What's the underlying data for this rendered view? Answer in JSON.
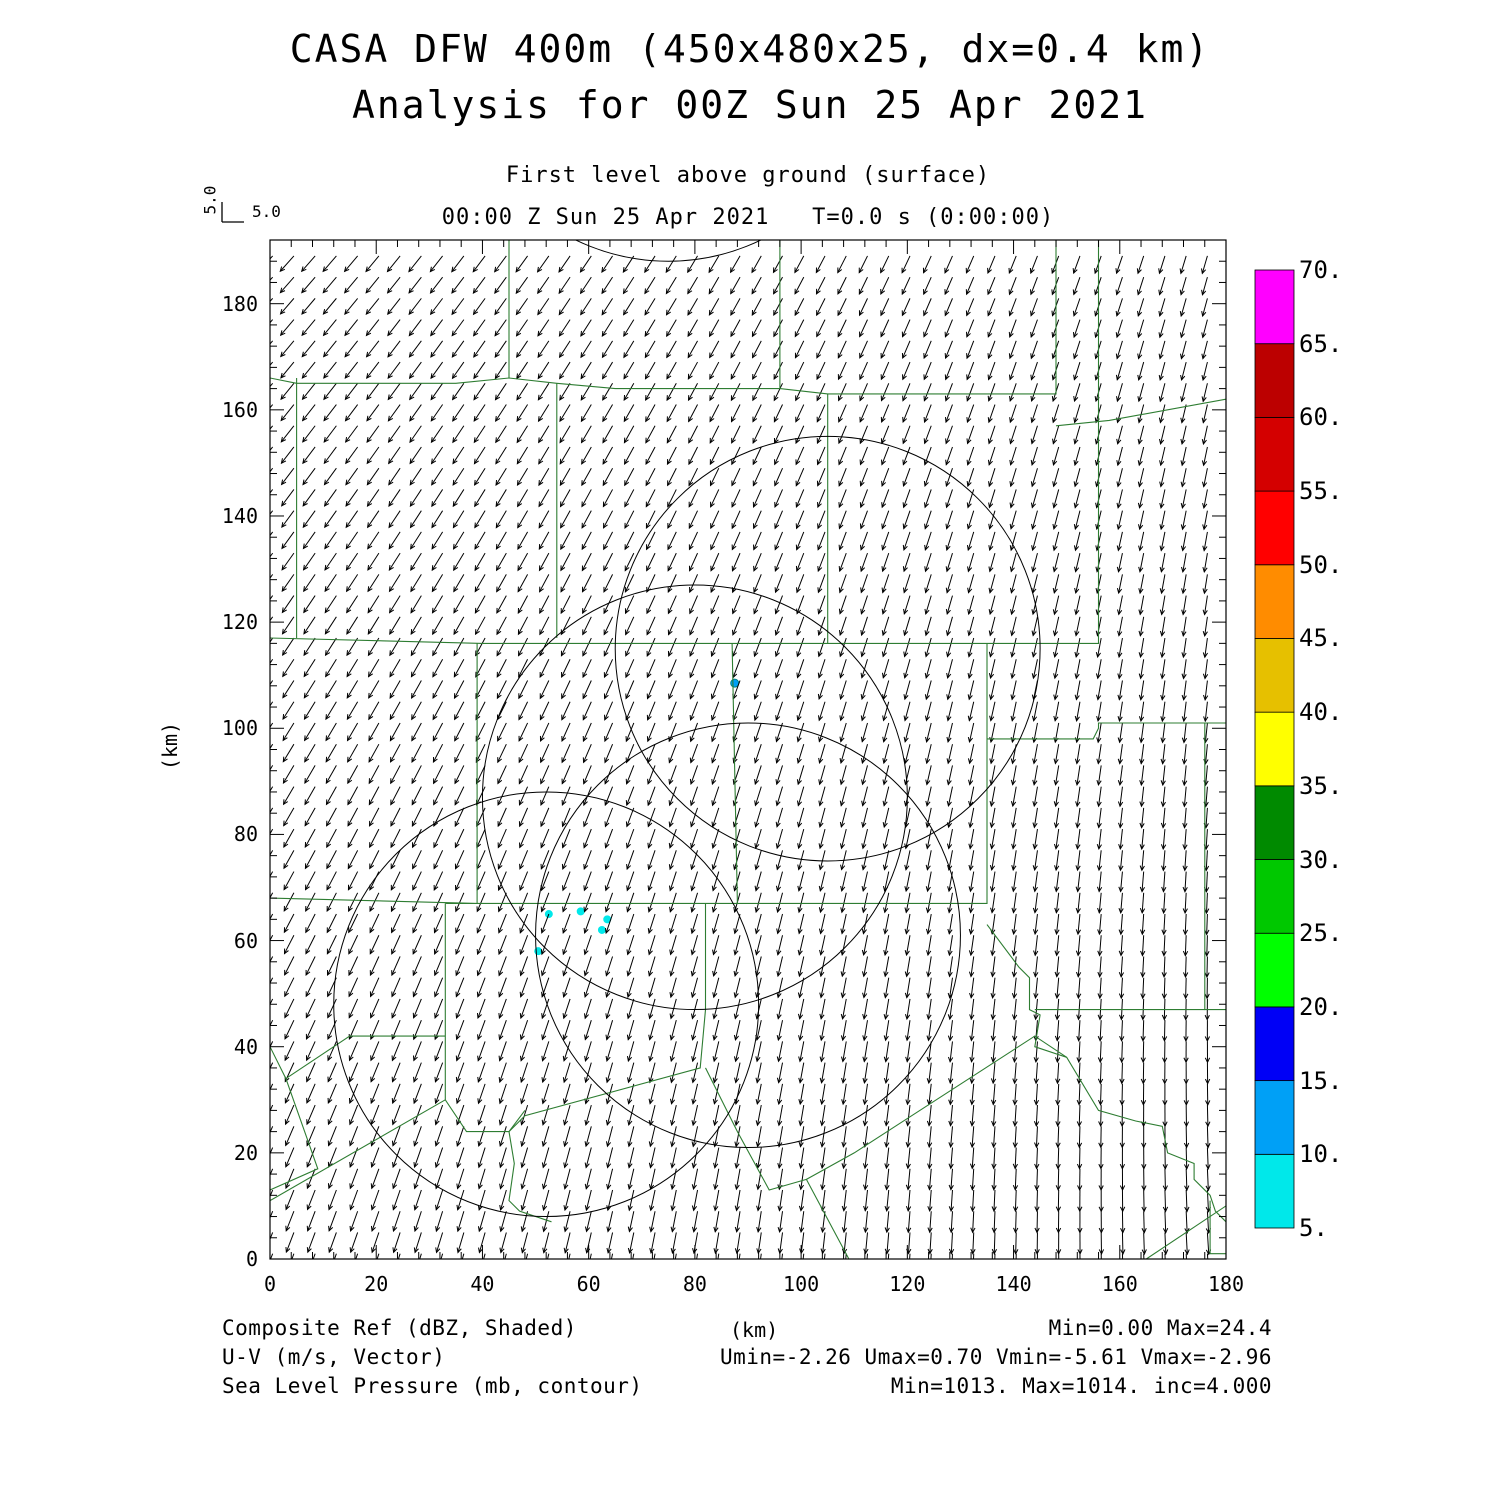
{
  "header": {
    "title_line1": "CASA DFW 400m (450x480x25, dx=0.4 km)",
    "title_line2": "Analysis for 00Z Sun 25 Apr 2021",
    "level": "First level above ground (surface)",
    "time_line": "00:00 Z Sun 25 Apr 2021   T=0.0 s (0:00:00)",
    "ref_vector_x": "5.0",
    "ref_vector_y": "5.0"
  },
  "axes": {
    "ylabel": "(km)",
    "xlabel": "(km)",
    "x_ticks": [
      "0",
      "20",
      "40",
      "60",
      "80",
      "100",
      "120",
      "140",
      "160",
      "180"
    ],
    "y_ticks": [
      "0",
      "20",
      "40",
      "60",
      "80",
      "100",
      "120",
      "140",
      "160",
      "180"
    ]
  },
  "colorbar": {
    "labels": [
      "5.",
      "10.",
      "15.",
      "20.",
      "25.",
      "30.",
      "35.",
      "40.",
      "45.",
      "50.",
      "55.",
      "60.",
      "65.",
      "70."
    ],
    "colors": [
      "#00e8ea",
      "#00a0f6",
      "#0000f6",
      "#00ff00",
      "#00c800",
      "#008a00",
      "#ffff00",
      "#e6c000",
      "#ff8c00",
      "#ff0000",
      "#d40000",
      "#bc0000",
      "#ff00ff"
    ]
  },
  "footer": {
    "field1": "Composite Ref (dBZ, Shaded)",
    "field1_stats": "Min=0.00 Max=24.4",
    "field2": "U-V (m/s, Vector)",
    "field2_stats": "Umin=-2.26 Umax=0.70 Vmin=-5.61 Vmax=-2.96",
    "field3": "Sea Level Pressure (mb, contour)",
    "field3_stats": "Min=1013. Max=1014. inc=4.000"
  },
  "colors": {
    "boundary": "#2e7d32",
    "vectors": "#000000",
    "contours": "#000000"
  },
  "chart_data": {
    "type": "map",
    "xlim": [
      0,
      180
    ],
    "ylim": [
      0,
      192
    ],
    "wind": {
      "u_range": [
        -2.26,
        0.7
      ],
      "v_range": [
        -5.61,
        -2.96
      ],
      "grid_spacing_km": 4
    },
    "reflectivity_echoes": [
      {
        "x": 87.5,
        "y": 108.5,
        "dbz": 12
      },
      {
        "x": 58.5,
        "y": 65.5,
        "dbz": 7
      },
      {
        "x": 52.5,
        "y": 65.0,
        "dbz": 6
      },
      {
        "x": 50.5,
        "y": 58.0,
        "dbz": 6
      },
      {
        "x": 63.5,
        "y": 64.0,
        "dbz": 5
      },
      {
        "x": 62.5,
        "y": 62.0,
        "dbz": 5
      }
    ],
    "radar_range_rings": [
      {
        "cx": 52,
        "cy": 48,
        "r": 40
      },
      {
        "cx": 80,
        "cy": 87,
        "r": 40
      },
      {
        "cx": 90,
        "cy": 61,
        "r": 40
      },
      {
        "cx": 105,
        "cy": 115,
        "r": 40
      },
      {
        "cx": 75,
        "cy": 228,
        "r": 40
      }
    ],
    "boundaries": [
      [
        [
          0,
          166
        ],
        [
          5,
          165
        ],
        [
          35,
          165
        ],
        [
          45,
          166
        ],
        [
          54,
          165
        ],
        [
          65,
          164
        ],
        [
          96,
          164
        ],
        [
          105,
          163
        ],
        [
          148,
          163
        ],
        [
          148,
          192
        ]
      ],
      [
        [
          5,
          166
        ],
        [
          5,
          117
        ]
      ],
      [
        [
          0,
          117
        ],
        [
          40,
          116
        ],
        [
          54,
          116
        ],
        [
          105,
          116
        ],
        [
          135,
          116
        ],
        [
          156,
          116
        ],
        [
          156,
          192
        ]
      ],
      [
        [
          54,
          165
        ],
        [
          54,
          117
        ]
      ],
      [
        [
          45,
          192
        ],
        [
          45,
          166
        ]
      ],
      [
        [
          96,
          192
        ],
        [
          96,
          164
        ]
      ],
      [
        [
          105,
          163
        ],
        [
          105,
          116
        ]
      ],
      [
        [
          148,
          157
        ],
        [
          158,
          158
        ],
        [
          180,
          162
        ]
      ],
      [
        [
          0,
          68
        ],
        [
          39,
          67
        ],
        [
          33,
          67
        ],
        [
          58,
          67
        ],
        [
          88,
          67
        ],
        [
          100,
          67
        ],
        [
          135,
          67
        ],
        [
          135,
          116
        ]
      ],
      [
        [
          39,
          116
        ],
        [
          39,
          67
        ]
      ],
      [
        [
          87,
          116
        ],
        [
          88,
          67
        ]
      ],
      [
        [
          33,
          67
        ],
        [
          33,
          30
        ]
      ],
      [
        [
          135,
          98
        ],
        [
          155,
          98
        ],
        [
          156,
          100
        ],
        [
          156,
          101
        ],
        [
          176,
          101
        ],
        [
          180,
          101
        ]
      ],
      [
        [
          176,
          101
        ],
        [
          176,
          47
        ],
        [
          180,
          47
        ]
      ],
      [
        [
          135,
          63
        ],
        [
          141,
          55
        ],
        [
          143,
          53
        ],
        [
          143,
          47
        ],
        [
          145,
          46
        ],
        [
          144,
          40
        ],
        [
          150,
          38
        ],
        [
          156,
          28
        ],
        [
          163,
          26
        ],
        [
          168,
          25
        ],
        [
          169,
          20
        ],
        [
          174,
          18
        ],
        [
          174,
          15
        ],
        [
          177,
          12
        ],
        [
          178,
          9
        ],
        [
          180,
          7
        ]
      ],
      [
        [
          144,
          47
        ],
        [
          156,
          47
        ],
        [
          176,
          47
        ]
      ],
      [
        [
          0,
          40
        ],
        [
          3,
          34
        ],
        [
          9,
          17
        ],
        [
          0,
          13
        ]
      ],
      [
        [
          3,
          34
        ],
        [
          15,
          42
        ],
        [
          33,
          42
        ]
      ],
      [
        [
          0,
          11
        ],
        [
          33,
          30
        ],
        [
          37,
          24
        ],
        [
          45,
          24
        ],
        [
          48,
          28
        ],
        [
          45,
          24
        ],
        [
          46,
          18
        ],
        [
          45,
          11
        ],
        [
          47,
          9
        ],
        [
          53,
          7
        ]
      ],
      [
        [
          45,
          24
        ],
        [
          48,
          27
        ],
        [
          81,
          36
        ],
        [
          82,
          47
        ],
        [
          82,
          67
        ]
      ],
      [
        [
          82,
          36
        ],
        [
          88,
          24
        ],
        [
          94,
          13
        ],
        [
          101,
          15
        ],
        [
          109,
          0
        ]
      ],
      [
        [
          101,
          15
        ],
        [
          110,
          20
        ],
        [
          144,
          42
        ],
        [
          150,
          38
        ]
      ],
      [
        [
          165,
          0
        ],
        [
          180,
          10
        ]
      ],
      [
        [
          177,
          11
        ],
        [
          177,
          1
        ],
        [
          180,
          1
        ]
      ]
    ]
  }
}
